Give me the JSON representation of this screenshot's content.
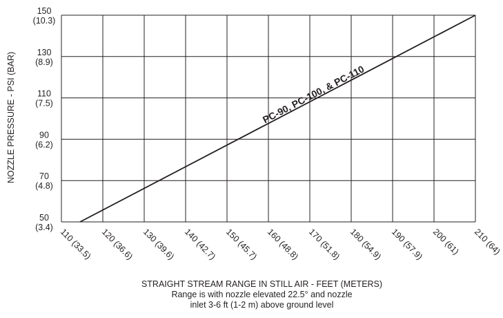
{
  "chart_data": {
    "type": "line",
    "xlabel": "STRAIGHT STREAM RANGE IN STILL AIR - FEET (METERS)",
    "notes": [
      "Range is with nozzle elevated 22.5° and nozzle",
      "inlet 3-6 ft (1-2 m) above ground level"
    ],
    "ylabel": "NOZZLE PRESSURE - PSI (BAR)",
    "xlim": [
      110,
      210
    ],
    "ylim": [
      50,
      150
    ],
    "x_ticks": [
      {
        "value": 110,
        "label": "110 (33.5)"
      },
      {
        "value": 120,
        "label": "120 (36.6)"
      },
      {
        "value": 130,
        "label": "130 (39.6)"
      },
      {
        "value": 140,
        "label": "140 (42.7)"
      },
      {
        "value": 150,
        "label": "150 (45.7)"
      },
      {
        "value": 160,
        "label": "160 (48.8)"
      },
      {
        "value": 170,
        "label": "170 (51.8)"
      },
      {
        "value": 180,
        "label": "180 (54.9)"
      },
      {
        "value": 190,
        "label": "190 (57.9)"
      },
      {
        "value": 200,
        "label": "200 (61)"
      },
      {
        "value": 210,
        "label": "210 (64)"
      }
    ],
    "y_ticks": [
      {
        "value": 50,
        "psi": "50",
        "bar": "(3.4)"
      },
      {
        "value": 70,
        "psi": "70",
        "bar": "(4.8)"
      },
      {
        "value": 90,
        "psi": "90",
        "bar": "(6.2)"
      },
      {
        "value": 110,
        "psi": "110",
        "bar": "(7.5)"
      },
      {
        "value": 130,
        "psi": "130",
        "bar": "(8.9)"
      },
      {
        "value": 150,
        "psi": "150",
        "bar": "(10.3)"
      }
    ],
    "grid": true,
    "series": [
      {
        "name": "PC-90, PC-100, & PC-110",
        "x": [
          114.5,
          210
        ],
        "y": [
          50,
          150
        ]
      }
    ],
    "line_color": "#231f20"
  }
}
